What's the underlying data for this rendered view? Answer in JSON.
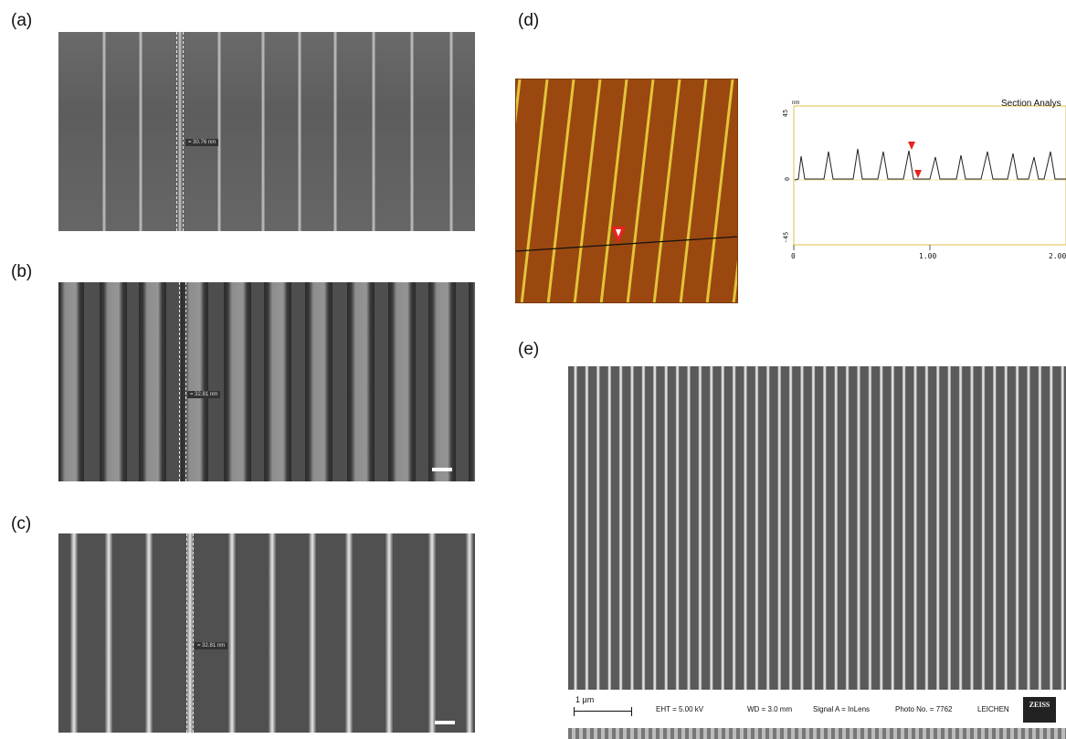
{
  "panels": {
    "a": {
      "label": "(a)",
      "measurement": "= 30.76 nm"
    },
    "b": {
      "label": "(b)",
      "measurement": "= 32.81 nm"
    },
    "c": {
      "label": "(c)",
      "measurement": "= 32.81 nm"
    },
    "d": {
      "label": "(d)",
      "profile": {
        "title": "Section Analys",
        "unit": "nm",
        "y_ticks": [
          "45",
          "0",
          "-45"
        ],
        "x_ticks": [
          "0",
          "1.00",
          "2.00"
        ]
      }
    },
    "e": {
      "label": "(e)",
      "scale_label": "1 μm",
      "eht": "EHT =  5.00 kV",
      "wd": "WD =  3.0 mm",
      "signal": "Signal A = InLens",
      "photo": "Photo No. = 7762",
      "org": "LEICHEN",
      "logo": "ZEISS"
    }
  },
  "colors": {
    "afm_background": "#9a4810",
    "afm_line": "#e6cc3c",
    "marker_red": "#e8231f",
    "profile_frame": "#e0c24a"
  }
}
